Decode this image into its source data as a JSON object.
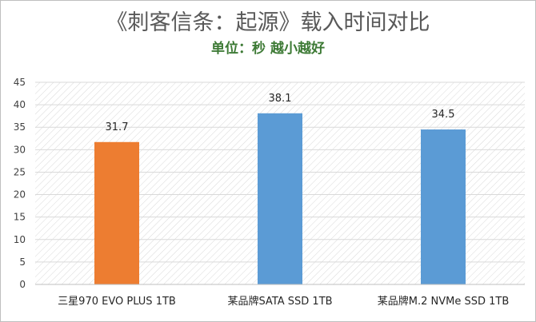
{
  "chart_data": {
    "type": "bar",
    "title": "《刺客信条：起源》载入时间对比",
    "subtitle": "单位：秒 越小越好",
    "categories": [
      "三星970 EVO PLUS 1TB",
      "某品牌SATA SSD 1TB",
      "某品牌M.2 NVMe SSD 1TB"
    ],
    "values": [
      31.7,
      38.1,
      34.5
    ],
    "data_labels": [
      "31.7",
      "38.1",
      "34.5"
    ],
    "bar_colors": [
      "#ed7d31",
      "#5b9bd5",
      "#5b9bd5"
    ],
    "ylim": [
      0,
      45
    ],
    "yticks": [
      0,
      5,
      10,
      15,
      20,
      25,
      30,
      35,
      40,
      45
    ],
    "grid": true,
    "legend": "none"
  }
}
